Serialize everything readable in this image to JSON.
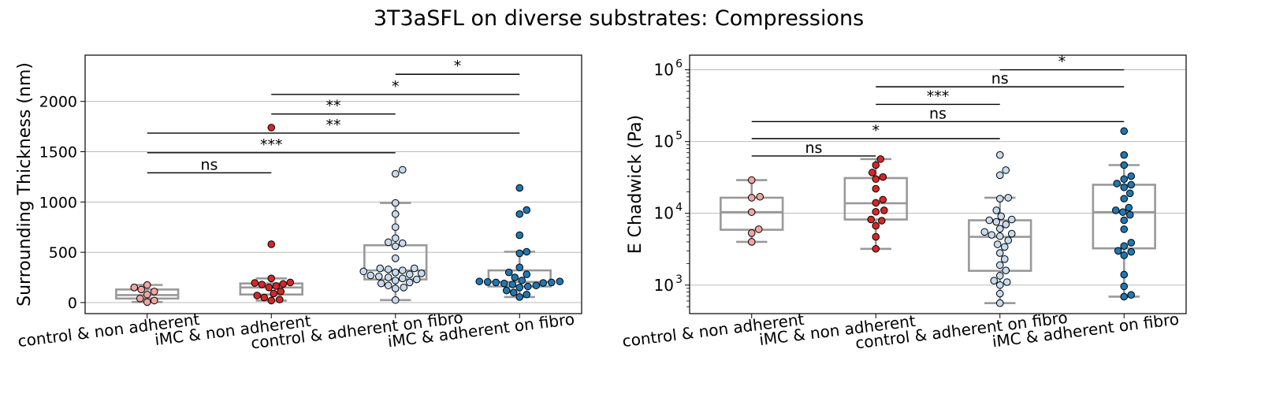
{
  "figure": {
    "title": "3T3aSFL on diverse substrates: Compressions"
  },
  "chart_data": [
    {
      "type": "box",
      "ylabel": "Surrounding Thickness (nm)",
      "xlabel": "",
      "yscale": "linear",
      "ylim": [
        -110,
        2460
      ],
      "yticks": [
        0,
        500,
        1000,
        1500,
        2000
      ],
      "grid": "y",
      "categories": [
        "control & non adherent",
        "iMC & non adherent",
        "control & adherent on fibro",
        "iMC & adherent on fibro"
      ],
      "colors": [
        "#f4a3a3",
        "#d62728",
        "#c6dbef",
        "#1f77b4"
      ],
      "boxes": [
        {
          "whislo": 5,
          "q1": 40,
          "med": 75,
          "q3": 130,
          "whishi": 175
        },
        {
          "whislo": 20,
          "q1": 80,
          "med": 150,
          "q3": 190,
          "whishi": 240
        },
        {
          "whislo": 25,
          "q1": 230,
          "med": 320,
          "q3": 570,
          "whishi": 990
        },
        {
          "whislo": 55,
          "q1": 160,
          "med": 205,
          "q3": 320,
          "whishi": 505
        }
      ],
      "points": [
        [
          5,
          20,
          40,
          80,
          110,
          130,
          150,
          175
        ],
        [
          20,
          30,
          50,
          70,
          90,
          110,
          150,
          165,
          180,
          185,
          195,
          200,
          240,
          580,
          1740
        ],
        [
          25,
          140,
          150,
          170,
          190,
          200,
          220,
          230,
          240,
          250,
          260,
          270,
          280,
          290,
          300,
          310,
          320,
          330,
          340,
          340,
          440,
          560,
          590,
          600,
          640,
          750,
          880,
          990,
          1280,
          1320
        ],
        [
          55,
          80,
          100,
          120,
          150,
          160,
          170,
          180,
          190,
          195,
          200,
          200,
          205,
          210,
          210,
          220,
          250,
          280,
          300,
          350,
          490,
          505,
          670,
          880,
          920,
          1140
        ]
      ],
      "annotations": [
        {
          "from": 0,
          "to": 1,
          "y": 1290,
          "text": "ns"
        },
        {
          "from": 0,
          "to": 2,
          "y": 1490,
          "text": "***"
        },
        {
          "from": 0,
          "to": 3,
          "y": 1685,
          "text": "**"
        },
        {
          "from": 1,
          "to": 2,
          "y": 1875,
          "text": "**"
        },
        {
          "from": 1,
          "to": 3,
          "y": 2070,
          "text": "*"
        },
        {
          "from": 2,
          "to": 3,
          "y": 2270,
          "text": "*"
        }
      ]
    },
    {
      "type": "box",
      "ylabel": "E Chadwick (Pa)",
      "xlabel": "",
      "yscale": "log",
      "ylim": [
        400,
        1600000
      ],
      "yticks": [
        1000,
        10000,
        100000,
        1000000
      ],
      "ytick_labels": [
        "10",
        "10",
        "10",
        "10"
      ],
      "ytick_exponents": [
        "3",
        "4",
        "5",
        "6"
      ],
      "grid": "y",
      "categories": [
        "control & non adherent",
        "iMC & non adherent",
        "control & adherent on fibro",
        "iMC & adherent on fibro"
      ],
      "colors": [
        "#f4a3a3",
        "#d62728",
        "#c6dbef",
        "#1f77b4"
      ],
      "boxes": [
        {
          "whislo": 4000,
          "q1": 5900,
          "med": 10400,
          "q3": 16500,
          "whishi": 29000
        },
        {
          "whislo": 3200,
          "q1": 8200,
          "med": 13800,
          "q3": 31000,
          "whishi": 57000
        },
        {
          "whislo": 560,
          "q1": 1580,
          "med": 4700,
          "q3": 8000,
          "whishi": 16500
        },
        {
          "whislo": 690,
          "q1": 3250,
          "med": 10400,
          "q3": 25000,
          "whishi": 47000
        }
      ],
      "points": [
        [
          4000,
          5300,
          6000,
          10400,
          16500,
          17000,
          29000
        ],
        [
          3200,
          4700,
          6700,
          7900,
          8200,
          10500,
          11000,
          14000,
          15500,
          22000,
          30000,
          32000,
          37000,
          47000,
          57000
        ],
        [
          560,
          760,
          1000,
          1100,
          1150,
          1350,
          1600,
          1900,
          2300,
          2800,
          3400,
          3700,
          4200,
          4800,
          5000,
          5200,
          5500,
          6100,
          7000,
          7600,
          8000,
          8200,
          9100,
          11000,
          16000,
          16500,
          34000,
          40000,
          65000
        ],
        [
          690,
          730,
          960,
          1400,
          2600,
          2900,
          3000,
          3500,
          3900,
          6000,
          8000,
          9500,
          10400,
          11000,
          12000,
          16000,
          19000,
          23000,
          25000,
          26000,
          30000,
          33000,
          47000,
          65000,
          140000
        ]
      ],
      "annotations": [
        {
          "from": 0,
          "to": 1,
          "y": 63000,
          "text": "ns"
        },
        {
          "from": 0,
          "to": 2,
          "y": 110000,
          "text": "*"
        },
        {
          "from": 0,
          "to": 3,
          "y": 190000,
          "text": "ns"
        },
        {
          "from": 1,
          "to": 2,
          "y": 330000,
          "text": "***"
        },
        {
          "from": 1,
          "to": 3,
          "y": 580000,
          "text": "ns"
        },
        {
          "from": 2,
          "to": 3,
          "y": 1000000,
          "text": "*"
        }
      ]
    }
  ]
}
